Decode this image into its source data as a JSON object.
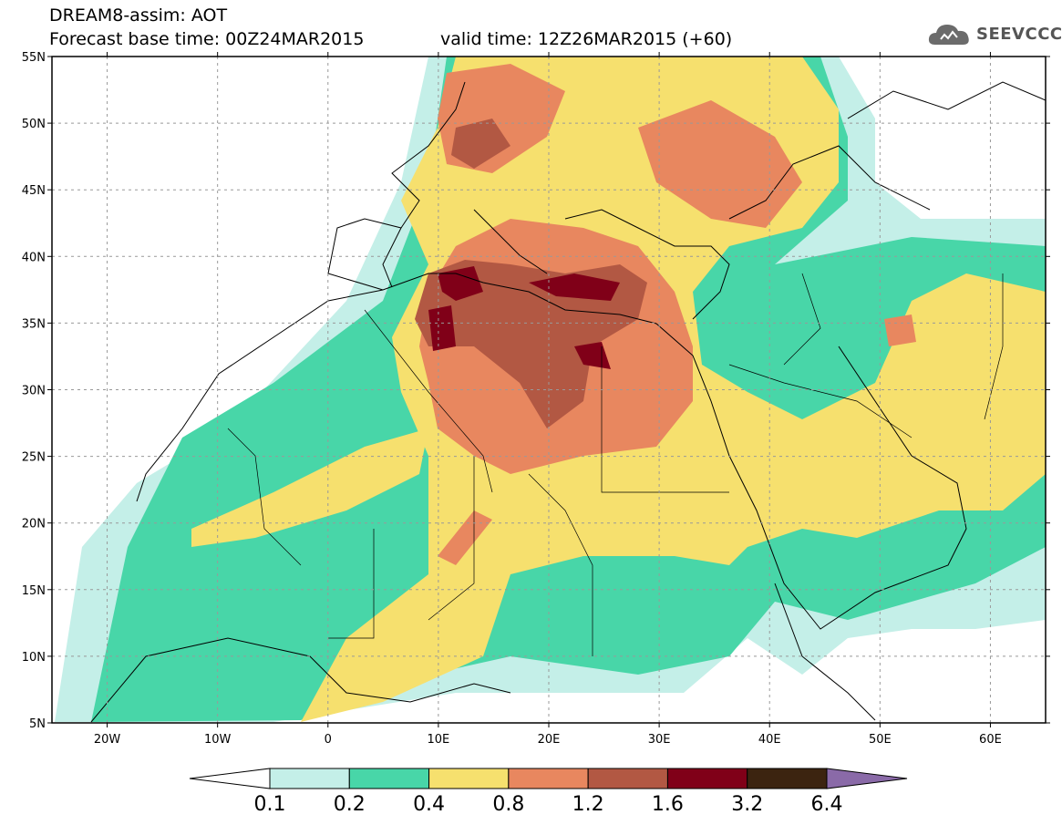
{
  "header": {
    "title": "DREAM8-assim: AOT",
    "base_time": "Forecast base time: 00Z24MAR2015",
    "valid_time": "valid time: 12Z26MAR2015 (+60)",
    "logo": "SEEVCCC"
  },
  "map": {
    "type": "contour-map",
    "lon_range": [
      -25,
      65
    ],
    "lat_range": [
      5,
      55
    ],
    "lat_labels": [
      "55N",
      "50N",
      "45N",
      "40N",
      "35N",
      "30N",
      "25N",
      "20N",
      "15N",
      "10N",
      "5N"
    ],
    "lon_labels": [
      "20W",
      "10W",
      "0",
      "10E",
      "20E",
      "30E",
      "40E",
      "50E",
      "60E"
    ],
    "grid": "dashed"
  },
  "colorbar": {
    "levels": [
      "0.1",
      "0.2",
      "0.4",
      "0.8",
      "1.2",
      "1.6",
      "3.2",
      "6.4"
    ],
    "colors": [
      "#ffffff",
      "#c4efe8",
      "#48d6a8",
      "#f6e06e",
      "#e8875f",
      "#b25843",
      "#800018",
      "#3c2410",
      "#8a6aa8"
    ]
  }
}
